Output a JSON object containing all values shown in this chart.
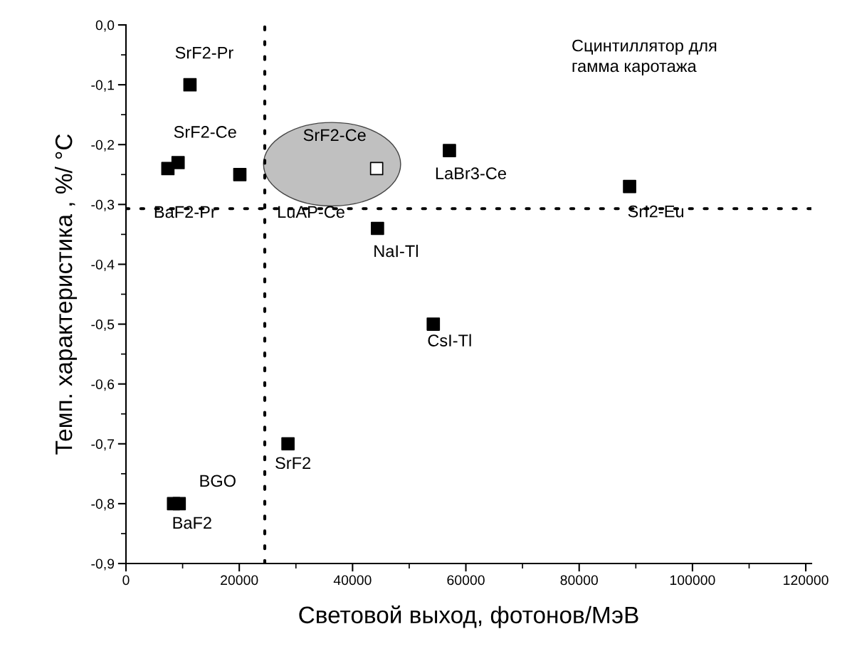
{
  "chart_data": {
    "type": "scatter",
    "xlabel": "Световой выход, фотонов/МэВ",
    "ylabel": "Темп. характеристика , %/ °C",
    "series": [
      {
        "type": "scatter",
        "color": "#000000",
        "marker": "square",
        "x": [
          11300,
          7400,
          9200,
          20100,
          57100,
          88900,
          44400,
          54250,
          28600,
          8400,
          9400
        ],
        "values": [
          -0.1,
          -0.24,
          -0.23,
          -0.25,
          -0.21,
          -0.27,
          -0.34,
          -0.5,
          -0.7,
          -0.8,
          -0.8
        ]
      },
      {
        "type": "scatter",
        "color": "#ffffff",
        "marker": "square",
        "x": [
          44250
        ],
        "values": [
          -0.24
        ]
      }
    ],
    "xlim": [
      0,
      121000
    ],
    "xticks": [
      0,
      20000,
      40000,
      60000,
      80000,
      100000,
      120000
    ],
    "ylim": [
      -0.9,
      0
    ],
    "yticks": [
      {
        "value": 0,
        "label": "0,0"
      },
      {
        "value": -0.1,
        "label": "-0,1"
      },
      {
        "value": -0.2,
        "label": "-0,2"
      },
      {
        "value": -0.3,
        "label": "-0,3"
      },
      {
        "value": -0.4,
        "label": "-0,4"
      },
      {
        "value": -0.5,
        "label": "-0,5"
      },
      {
        "value": -0.6,
        "label": "-0,6"
      },
      {
        "value": -0.7,
        "label": "-0,7"
      },
      {
        "value": -0.8,
        "label": "-0,8"
      },
      {
        "value": -0.9,
        "label": "-0,9"
      }
    ],
    "ref_lines": [
      {
        "axis": "y",
        "value": -0.307,
        "color": "#000000",
        "line_style": "dotted"
      },
      {
        "axis": "x",
        "value": 24500,
        "color": "#000000",
        "line_style": "dotted"
      }
    ],
    "annotations": [
      "Сцинтиллятор для\nгамма каротажа",
      {
        "text": "SrF2-Pr",
        "x": 11300,
        "y": -0.1
      },
      {
        "text": "SrF2-Ce",
        "x": 9200,
        "y": -0.23
      },
      {
        "text": "SrF2-Ce",
        "x": 44250,
        "y": -0.24
      },
      "BaF2-Pr",
      "LuAP-Ce",
      {
        "text": "LaBr3-Ce",
        "x": 57100,
        "y": -0.21
      },
      {
        "text": "SrI2-Eu",
        "x": 88900,
        "y": -0.27
      },
      {
        "text": "NaI-Tl",
        "x": 44400,
        "y": -0.34
      },
      {
        "text": "CsI-Tl",
        "x": 54250,
        "y": -0.5
      },
      {
        "text": "SrF2",
        "x": 28600,
        "y": -0.7
      },
      {
        "text": "BGO",
        "x": 9400,
        "y": -0.8
      },
      {
        "text": "BaF2",
        "x": 8400,
        "y": -0.8
      }
    ],
    "grid": false,
    "legend": false
  }
}
